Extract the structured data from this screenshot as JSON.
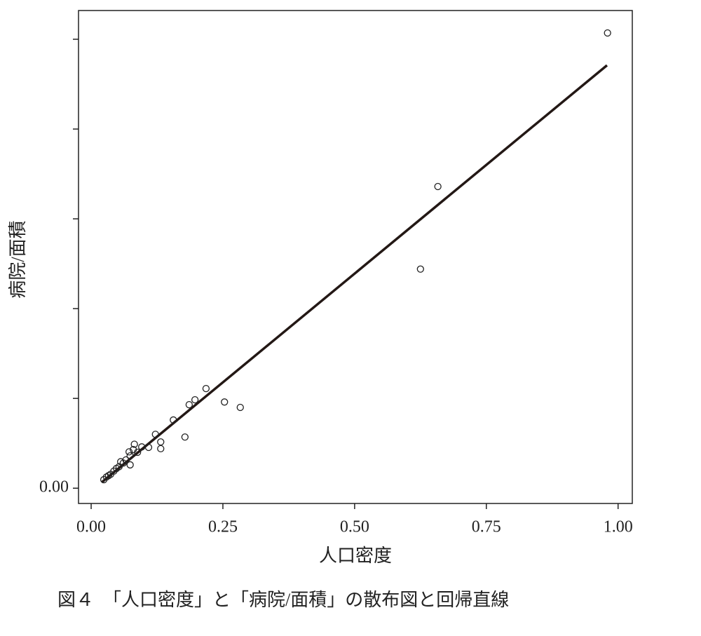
{
  "chart_data": {
    "type": "scatter",
    "x_label": "人口密度",
    "y_label": "病院/面積",
    "caption": "図４　「人口密度」と「病院/面積」の散布図と回帰直線",
    "x": [
      0.98,
      0.658,
      0.625,
      0.283,
      0.253,
      0.218,
      0.197,
      0.186,
      0.178,
      0.156,
      0.132,
      0.132,
      0.122,
      0.109,
      0.096,
      0.088,
      0.082,
      0.08,
      0.074,
      0.072,
      0.074,
      0.066,
      0.061,
      0.056,
      0.053,
      0.048,
      0.043,
      0.037,
      0.033,
      0.029,
      0.024
    ],
    "y": [
      1.014,
      0.672,
      0.488,
      0.18,
      0.192,
      0.222,
      0.197,
      0.186,
      0.114,
      0.152,
      0.103,
      0.088,
      0.12,
      0.091,
      0.092,
      0.08,
      0.098,
      0.086,
      0.072,
      0.081,
      0.052,
      0.063,
      0.056,
      0.059,
      0.048,
      0.044,
      0.038,
      0.031,
      0.028,
      0.025,
      0.019
    ],
    "marker_color": "#222222",
    "regression": {
      "x": [
        0.02,
        0.979
      ],
      "y": [
        0.013,
        0.942
      ],
      "color": "#231815"
    },
    "xlim": [
      -0.024,
      1.027
    ],
    "ylim": [
      -0.034,
      1.064
    ],
    "xticks": [
      {
        "value": 0,
        "label": "0.00"
      },
      {
        "value": 0.25,
        "label": "0.25"
      },
      {
        "value": 0.5,
        "label": "0.50"
      },
      {
        "value": 0.75,
        "label": "0.75"
      },
      {
        "value": 1,
        "label": "1.00"
      }
    ],
    "yticks": [
      {
        "value": 0,
        "label": "0.00"
      },
      {
        "value": 0.2,
        "label": null
      },
      {
        "value": 0.4,
        "label": null
      },
      {
        "value": 0.6,
        "label": null
      },
      {
        "value": 0.8,
        "label": null
      },
      {
        "value": 1.0,
        "label": null
      }
    ]
  }
}
